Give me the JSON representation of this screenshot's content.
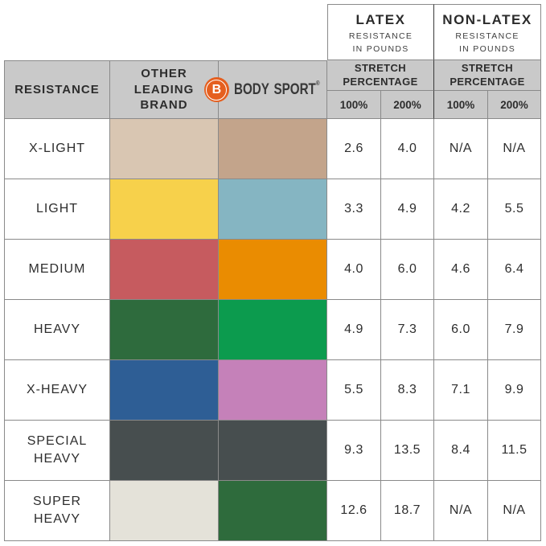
{
  "top_header": {
    "latex": {
      "title": "LATEX",
      "subtitle": "RESISTANCE\nIN POUNDS"
    },
    "non_latex": {
      "title": "NON-LATEX",
      "subtitle": "RESISTANCE\nIN POUNDS"
    }
  },
  "column_headers": {
    "resistance": "RESISTANCE",
    "other_brand": "OTHER\nLEADING\nBRAND",
    "stretch_latex": "STRETCH\nPERCENTAGE",
    "stretch_non_latex": "STRETCH\nPERCENTAGE",
    "latex_100": "100%",
    "latex_200": "200%",
    "non_latex_100": "100%",
    "non_latex_200": "200%"
  },
  "brand": {
    "name": "BODY SPORT",
    "registered_mark": "®",
    "logo_letter": "B",
    "logo_color": "#e55f1f"
  },
  "rows": [
    {
      "label": "X-LIGHT",
      "other_brand_color": "#d9c6b2",
      "body_sport_color": "#c3a48b",
      "latex_100": "2.6",
      "latex_200": "4.0",
      "non_latex_100": "N/A",
      "non_latex_200": "N/A"
    },
    {
      "label": "LIGHT",
      "other_brand_color": "#f7d14b",
      "body_sport_color": "#85b5c2",
      "latex_100": "3.3",
      "latex_200": "4.9",
      "non_latex_100": "4.2",
      "non_latex_200": "5.5"
    },
    {
      "label": "MEDIUM",
      "other_brand_color": "#c65b5f",
      "body_sport_color": "#ea8c01",
      "latex_100": "4.0",
      "latex_200": "6.0",
      "non_latex_100": "4.6",
      "non_latex_200": "6.4"
    },
    {
      "label": "HEAVY",
      "other_brand_color": "#2e6b3d",
      "body_sport_color": "#0c9b4e",
      "latex_100": "4.9",
      "latex_200": "7.3",
      "non_latex_100": "6.0",
      "non_latex_200": "7.9"
    },
    {
      "label": "X-HEAVY",
      "other_brand_color": "#2e5e95",
      "body_sport_color": "#c581b9",
      "latex_100": "5.5",
      "latex_200": "8.3",
      "non_latex_100": "7.1",
      "non_latex_200": "9.9"
    },
    {
      "label": "SPECIAL\nHEAVY",
      "other_brand_color": "#474e4f",
      "body_sport_color": "#474e4f",
      "latex_100": "9.3",
      "latex_200": "13.5",
      "non_latex_100": "8.4",
      "non_latex_200": "11.5"
    },
    {
      "label": "SUPER\nHEAVY",
      "other_brand_color": "#e4e2d9",
      "body_sport_color": "#2e6b3c",
      "latex_100": "12.6",
      "latex_200": "18.7",
      "non_latex_100": "N/A",
      "non_latex_200": "N/A"
    }
  ],
  "colors": {
    "header_bg": "#c9c9c9",
    "grid_line": "#8a8a8a",
    "group_divider": "#3a3a3a",
    "logo_orange": "#e55f1f"
  },
  "chart_data": {
    "type": "table",
    "title": "Resistance band comparison: Body Sport vs other leading brand, resistance in pounds at stretch percentage",
    "column_groups": [
      "LATEX RESISTANCE IN POUNDS",
      "NON-LATEX RESISTANCE IN POUNDS"
    ],
    "columns": [
      "RESISTANCE",
      "OTHER LEADING BRAND (color)",
      "BODY SPORT (color)",
      "LATEX 100%",
      "LATEX 200%",
      "NON-LATEX 100%",
      "NON-LATEX 200%"
    ],
    "rows": [
      [
        "X-LIGHT",
        "tan #d9c6b2",
        "dark tan #c3a48b",
        "2.6",
        "4.0",
        "N/A",
        "N/A"
      ],
      [
        "LIGHT",
        "yellow #f7d14b",
        "steel blue #85b5c2",
        "3.3",
        "4.9",
        "4.2",
        "5.5"
      ],
      [
        "MEDIUM",
        "red #c65b5f",
        "orange #ea8c01",
        "4.0",
        "6.0",
        "4.6",
        "6.4"
      ],
      [
        "HEAVY",
        "dark green #2e6b3d",
        "green #0c9b4e",
        "4.9",
        "7.3",
        "6.0",
        "7.9"
      ],
      [
        "X-HEAVY",
        "blue #2e5e95",
        "orchid #c581b9",
        "5.5",
        "8.3",
        "7.1",
        "9.9"
      ],
      [
        "SPECIAL HEAVY",
        "dark gray #474e4f",
        "dark gray #474e4f",
        "9.3",
        "13.5",
        "8.4",
        "11.5"
      ],
      [
        "SUPER HEAVY",
        "off-white #e4e2d9",
        "dark green #2e6b3c",
        "12.6",
        "18.7",
        "N/A",
        "N/A"
      ]
    ]
  }
}
